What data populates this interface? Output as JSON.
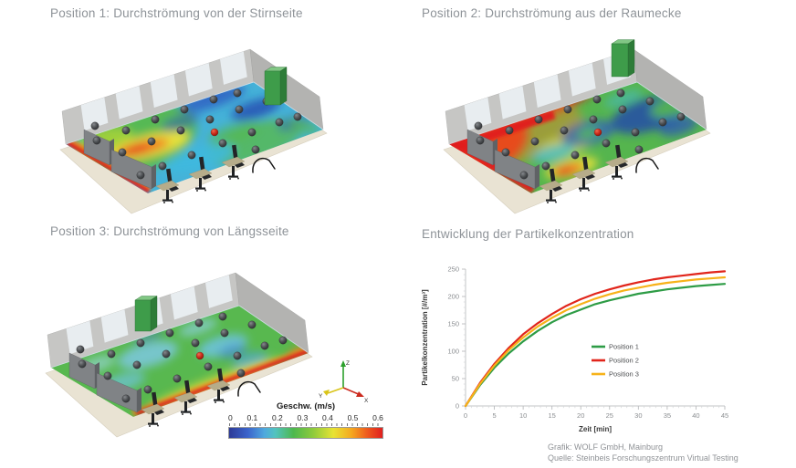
{
  "panels": {
    "p1": {
      "title": "Position 1: Durchströmung von der Stirnseite"
    },
    "p2": {
      "title": "Position 2: Durchströmung aus der Raumecke"
    },
    "p3": {
      "title": "Position 3: Durchströmung von Längsseite"
    },
    "p4": {
      "title": "Entwicklung der Partikelkonzentration"
    }
  },
  "colorbar": {
    "title": "Geschw. (m/s)",
    "ticks": [
      "0",
      "0.1",
      "0.2",
      "0.3",
      "0.4",
      "0.5",
      "0.6"
    ]
  },
  "triad": {
    "x": "X",
    "y": "Y",
    "z": "Z"
  },
  "footer": {
    "line1": "Grafik: WOLF GmbH, Mainburg",
    "line2": "Quelle: Steinbeis Forschungszentrum Virtual Testing"
  },
  "chart_data": {
    "type": "line",
    "title": "Entwicklung der Partikelkonzentration",
    "xlabel": "Zeit [min]",
    "ylabel": "Partikelkonzentration [#/m³]",
    "xlim": [
      0,
      45
    ],
    "ylim": [
      0,
      250
    ],
    "xticks": [
      0,
      5,
      10,
      15,
      20,
      25,
      30,
      35,
      40,
      45
    ],
    "yticks": [
      0,
      50,
      100,
      150,
      200,
      250
    ],
    "grid": false,
    "legend_position": "center-right",
    "x": [
      0,
      2.5,
      5,
      7.5,
      10,
      12.5,
      15,
      17.5,
      20,
      22.5,
      25,
      27.5,
      30,
      32.5,
      35,
      37.5,
      40,
      42.5,
      45
    ],
    "series": [
      {
        "name": "Position 1",
        "color": "#2e9c46",
        "values": [
          0,
          38,
          70,
          96,
          118,
          137,
          153,
          166,
          176,
          186,
          193,
          199,
          205,
          209,
          213,
          216,
          219,
          221,
          223
        ]
      },
      {
        "name": "Position 2",
        "color": "#e1251b",
        "values": [
          0,
          42,
          77,
          106,
          131,
          151,
          168,
          183,
          195,
          205,
          213,
          220,
          226,
          231,
          235,
          238,
          241,
          244,
          246
        ]
      },
      {
        "name": "Position 3",
        "color": "#f7b219",
        "values": [
          0,
          40,
          74,
          102,
          125,
          145,
          161,
          175,
          186,
          196,
          204,
          211,
          216,
          221,
          225,
          228,
          231,
          233,
          235
        ]
      }
    ]
  }
}
